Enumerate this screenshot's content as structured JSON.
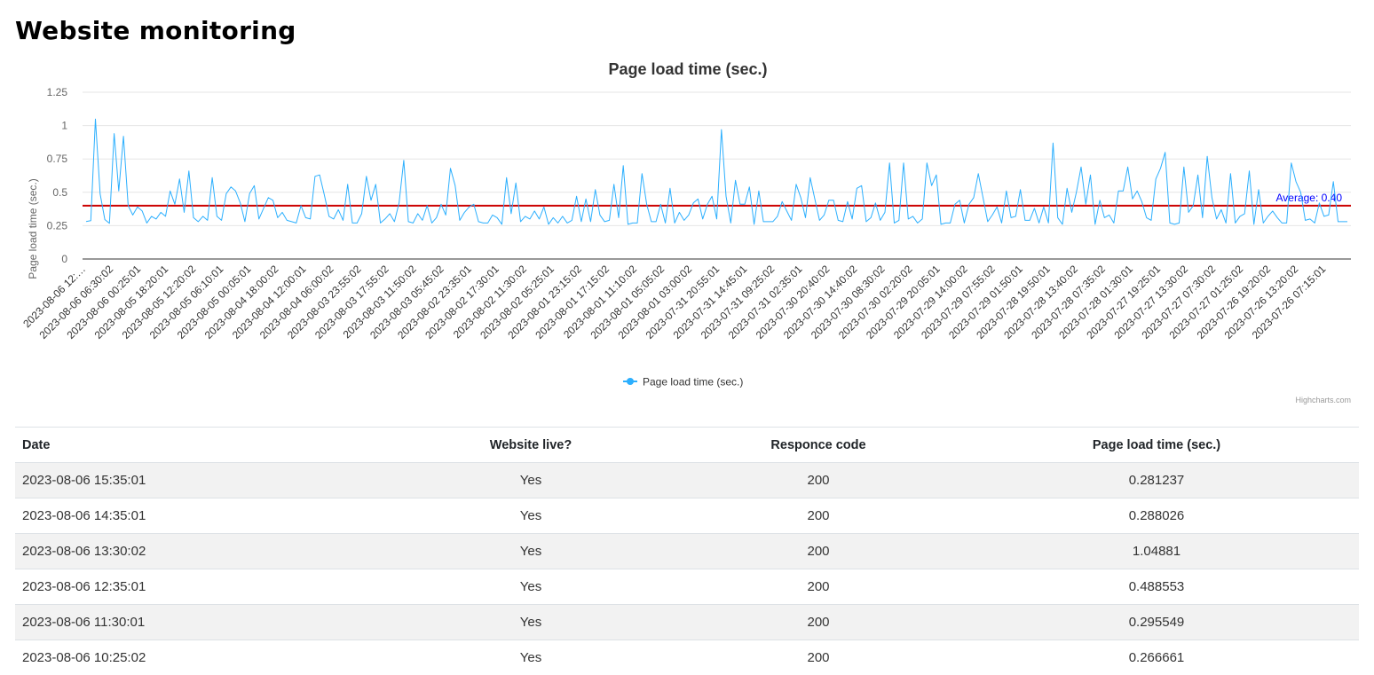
{
  "page": {
    "title": "Website monitoring"
  },
  "chart_data": {
    "type": "line",
    "title": "Page load time (sec.)",
    "xlabel": "",
    "ylabel": "Page load time (sec.)",
    "ylim": [
      0,
      1.25
    ],
    "yticks": [
      "0",
      "0.25",
      "0.5",
      "0.75",
      "1",
      "1.25"
    ],
    "ytick_values": [
      0,
      0.25,
      0.5,
      0.75,
      1,
      1.25
    ],
    "grid": true,
    "legend": {
      "position": "bottom-center",
      "entries": [
        "Page load time (sec.)"
      ]
    },
    "credits": "Highcharts.com",
    "series_color": "#2caffe",
    "average": {
      "value": 0.4,
      "label": "Average: 0.40",
      "color": "#cc0000",
      "label_color": "#0000ff"
    },
    "x_tick_labels": [
      "2023-08-06 12:…",
      "2023-08-06 06:30:02",
      "2023-08-06 00:25:01",
      "2023-08-05 18:20:01",
      "2023-08-05 12:20:02",
      "2023-08-05 06:10:01",
      "2023-08-05 00:05:01",
      "2023-08-04 18:00:02",
      "2023-08-04 12:00:01",
      "2023-08-04 06:00:02",
      "2023-08-03 23:55:02",
      "2023-08-03 17:55:02",
      "2023-08-03 11:50:02",
      "2023-08-03 05:45:02",
      "2023-08-02 23:35:01",
      "2023-08-02 17:30:01",
      "2023-08-02 11:30:02",
      "2023-08-02 05:25:01",
      "2023-08-01 23:15:02",
      "2023-08-01 17:15:02",
      "2023-08-01 11:10:02",
      "2023-08-01 05:05:02",
      "2023-08-01 03:00:02",
      "2023-07-31 20:55:01",
      "2023-07-31 14:45:01",
      "2023-07-31 09:25:02",
      "2023-07-31 02:35:01",
      "2023-07-30 20:40:02",
      "2023-07-30 14:40:02",
      "2023-07-30 08:30:02",
      "2023-07-30 02:20:02",
      "2023-07-29 20:05:01",
      "2023-07-29 14:00:02",
      "2023-07-29 07:55:02",
      "2023-07-29 01:50:01",
      "2023-07-28 19:50:01",
      "2023-07-28 13:40:02",
      "2023-07-28 07:35:02",
      "2023-07-28 01:30:01",
      "2023-07-27 19:25:01",
      "2023-07-27 13:30:02",
      "2023-07-27 07:30:02",
      "2023-07-27 01:25:02",
      "2023-07-26 19:20:02",
      "2023-07-26 13:20:02",
      "2023-07-26 07:15:01"
    ],
    "series": [
      {
        "name": "Page load time (sec.)",
        "values": [
          0.281,
          0.288,
          1.049,
          0.489,
          0.296,
          0.267,
          0.94,
          0.51,
          0.92,
          0.4,
          0.33,
          0.39,
          0.36,
          0.27,
          0.32,
          0.3,
          0.35,
          0.32,
          0.51,
          0.41,
          0.6,
          0.35,
          0.66,
          0.31,
          0.28,
          0.32,
          0.29,
          0.61,
          0.32,
          0.29,
          0.49,
          0.54,
          0.51,
          0.42,
          0.28,
          0.49,
          0.55,
          0.3,
          0.38,
          0.46,
          0.44,
          0.31,
          0.35,
          0.29,
          0.28,
          0.27,
          0.4,
          0.31,
          0.3,
          0.62,
          0.63,
          0.48,
          0.32,
          0.3,
          0.37,
          0.29,
          0.56,
          0.27,
          0.27,
          0.34,
          0.62,
          0.44,
          0.56,
          0.27,
          0.3,
          0.34,
          0.28,
          0.42,
          0.74,
          0.28,
          0.27,
          0.34,
          0.29,
          0.4,
          0.27,
          0.31,
          0.41,
          0.33,
          0.68,
          0.55,
          0.29,
          0.35,
          0.39,
          0.41,
          0.28,
          0.27,
          0.27,
          0.33,
          0.31,
          0.26,
          0.61,
          0.34,
          0.57,
          0.28,
          0.32,
          0.3,
          0.36,
          0.3,
          0.39,
          0.26,
          0.31,
          0.27,
          0.32,
          0.27,
          0.29,
          0.47,
          0.28,
          0.45,
          0.28,
          0.52,
          0.33,
          0.28,
          0.29,
          0.56,
          0.31,
          0.7,
          0.26,
          0.27,
          0.27,
          0.64,
          0.41,
          0.28,
          0.28,
          0.41,
          0.27,
          0.53,
          0.27,
          0.35,
          0.29,
          0.33,
          0.42,
          0.45,
          0.3,
          0.41,
          0.47,
          0.3,
          0.97,
          0.47,
          0.27,
          0.59,
          0.41,
          0.41,
          0.54,
          0.26,
          0.51,
          0.28,
          0.28,
          0.28,
          0.32,
          0.43,
          0.36,
          0.29,
          0.56,
          0.46,
          0.31,
          0.61,
          0.45,
          0.29,
          0.33,
          0.44,
          0.44,
          0.29,
          0.28,
          0.43,
          0.3,
          0.53,
          0.55,
          0.28,
          0.31,
          0.42,
          0.29,
          0.35,
          0.72,
          0.27,
          0.29,
          0.72,
          0.3,
          0.32,
          0.27,
          0.3,
          0.72,
          0.55,
          0.63,
          0.26,
          0.27,
          0.27,
          0.41,
          0.44,
          0.27,
          0.41,
          0.46,
          0.64,
          0.46,
          0.28,
          0.33,
          0.39,
          0.27,
          0.51,
          0.31,
          0.32,
          0.52,
          0.29,
          0.29,
          0.38,
          0.27,
          0.39,
          0.27,
          0.87,
          0.31,
          0.26,
          0.53,
          0.35,
          0.5,
          0.69,
          0.41,
          0.63,
          0.26,
          0.44,
          0.31,
          0.33,
          0.27,
          0.51,
          0.51,
          0.69,
          0.45,
          0.51,
          0.43,
          0.31,
          0.29,
          0.6,
          0.68,
          0.8,
          0.27,
          0.26,
          0.27,
          0.69,
          0.35,
          0.4,
          0.63,
          0.31,
          0.77,
          0.46,
          0.3,
          0.37,
          0.27,
          0.64,
          0.27,
          0.32,
          0.34,
          0.66,
          0.26,
          0.52,
          0.27,
          0.32,
          0.36,
          0.31,
          0.27,
          0.27,
          0.72,
          0.58,
          0.5,
          0.29,
          0.3,
          0.27,
          0.42,
          0.32,
          0.33,
          0.58,
          0.28,
          0.28,
          0.28
        ]
      }
    ]
  },
  "table": {
    "columns": [
      "Date",
      "Website live?",
      "Responce code",
      "Page load time (sec.)"
    ],
    "rows": [
      [
        "2023-08-06 15:35:01",
        "Yes",
        "200",
        "0.281237"
      ],
      [
        "2023-08-06 14:35:01",
        "Yes",
        "200",
        "0.288026"
      ],
      [
        "2023-08-06 13:30:02",
        "Yes",
        "200",
        "1.04881"
      ],
      [
        "2023-08-06 12:35:01",
        "Yes",
        "200",
        "0.488553"
      ],
      [
        "2023-08-06 11:30:01",
        "Yes",
        "200",
        "0.295549"
      ],
      [
        "2023-08-06 10:25:02",
        "Yes",
        "200",
        "0.266661"
      ]
    ]
  }
}
